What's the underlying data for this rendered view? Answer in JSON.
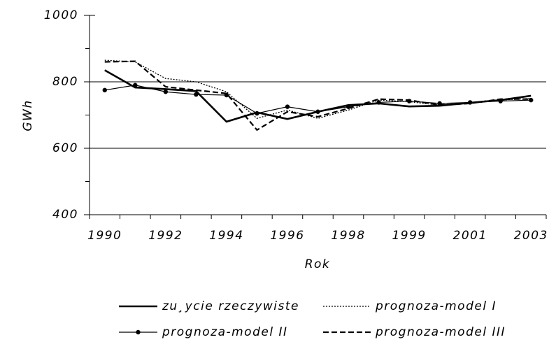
{
  "chart_data": {
    "type": "line",
    "y_label": "GWh",
    "x_label": "Rok",
    "categories": [
      "1990",
      null,
      "1992",
      null,
      "1994",
      null,
      "1996",
      null,
      "1998",
      null,
      "1999",
      null,
      "2001",
      null,
      "2003"
    ],
    "ylim": [
      400,
      1000
    ],
    "yticks": [
      400,
      600,
      800,
      1000
    ],
    "grid": true,
    "series": [
      {
        "name": "zu¸ycie rzeczywiste",
        "color": "#000000",
        "line_style": "bold",
        "markers": false,
        "values": [
          835,
          783,
          778,
          772,
          680,
          708,
          688,
          710,
          730,
          735,
          726,
          728,
          737,
          745,
          758
        ]
      },
      {
        "name": "prognoza-model I",
        "color": "#000000",
        "line_style": "dotted",
        "markers": false,
        "values": [
          865,
          860,
          810,
          800,
          770,
          690,
          715,
          690,
          715,
          745,
          740,
          730,
          735,
          745,
          750
        ]
      },
      {
        "name": "prognoza-model II",
        "color": "#000000",
        "line_style": "solid",
        "markers": true,
        "values": [
          775,
          790,
          770,
          762,
          760,
          705,
          725,
          710,
          725,
          738,
          742,
          735,
          738,
          742,
          745
        ]
      },
      {
        "name": "prognoza-model III",
        "color": "#000000",
        "line_style": "dashed",
        "markers": false,
        "values": [
          860,
          862,
          785,
          775,
          765,
          655,
          710,
          695,
          720,
          748,
          745,
          730,
          735,
          748,
          748
        ]
      }
    ]
  }
}
